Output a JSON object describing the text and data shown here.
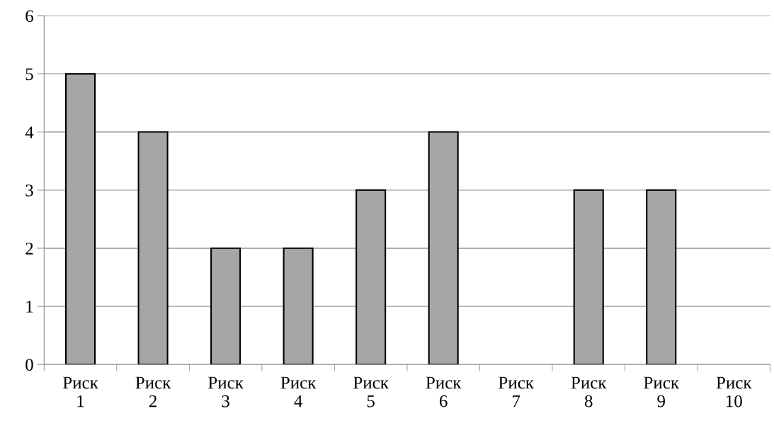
{
  "chart_data": {
    "type": "bar",
    "categories": [
      "Риск\n1",
      "Риск\n2",
      "Риск\n3",
      "Риск\n4",
      "Риск\n5",
      "Риск\n6",
      "Риск\n7",
      "Риск\n8",
      "Риск\n9",
      "Риск\n10"
    ],
    "values": [
      5,
      4,
      2,
      2,
      3,
      4,
      0,
      3,
      3,
      0
    ],
    "color": "#a6a6a6",
    "ylim": [
      0,
      6
    ],
    "yticks": [
      0,
      1,
      2,
      3,
      4,
      5,
      6
    ],
    "grid": "y",
    "legend": false
  }
}
